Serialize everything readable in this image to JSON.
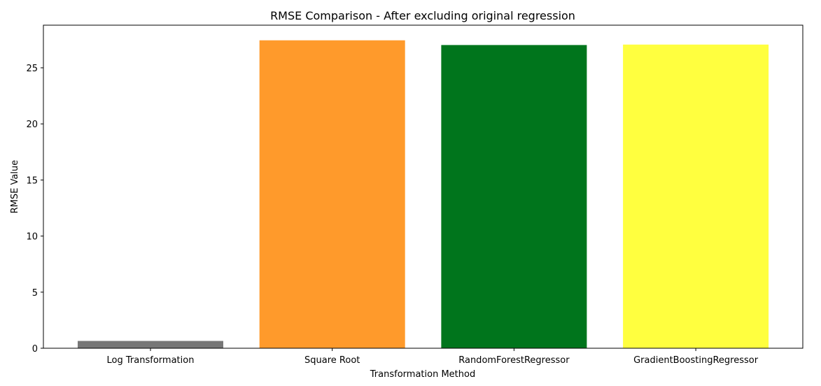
{
  "chart_data": {
    "type": "bar",
    "title": "RMSE Comparison - After excluding original regression",
    "xlabel": "Transformation Method",
    "ylabel": "RMSE Value",
    "categories": [
      "Log Transformation",
      "Square Root",
      "RandomForestRegressor",
      "GradientBoostingRegressor"
    ],
    "values": [
      0.65,
      27.45,
      27.03,
      27.07
    ],
    "colors": [
      "#777777",
      "#ff9a2b",
      "#00751c",
      "#ffff3f"
    ],
    "ylim": [
      0,
      28.8
    ],
    "yticks": [
      0,
      5,
      10,
      15,
      20,
      25
    ],
    "grid": false,
    "legend": false
  }
}
